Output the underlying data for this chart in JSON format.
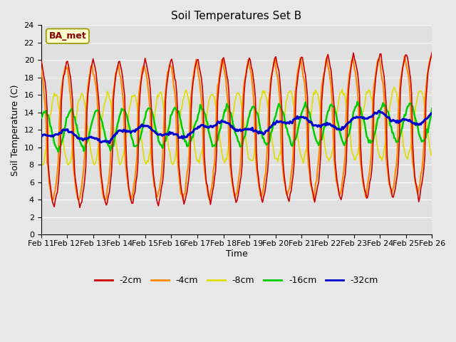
{
  "title": "Soil Temperatures Set B",
  "xlabel": "Time",
  "ylabel": "Soil Temperature (C)",
  "annotation": "BA_met",
  "ylim": [
    0,
    24
  ],
  "yticks": [
    0,
    2,
    4,
    6,
    8,
    10,
    12,
    14,
    16,
    18,
    20,
    22,
    24
  ],
  "x_labels": [
    "Feb 11",
    "Feb 12",
    "Feb 13",
    "Feb 14",
    "Feb 15",
    "Feb 16",
    "Feb 17",
    "Feb 18",
    "Feb 19",
    "Feb 20",
    "Feb 21",
    "Feb 22",
    "Feb 23",
    "Feb 24",
    "Feb 25",
    "Feb 26"
  ],
  "colors": {
    "-2cm": "#cc0000",
    "-4cm": "#ff8800",
    "-8cm": "#dddd00",
    "-16cm": "#00cc00",
    "-32cm": "#0000cc"
  },
  "line_widths": {
    "-2cm": 1.2,
    "-4cm": 1.5,
    "-8cm": 1.2,
    "-16cm": 1.8,
    "-32cm": 2.2
  },
  "fig_bg_color": "#e8e8e8",
  "plot_bg_color": "#e0e0e0",
  "title_fontsize": 11,
  "axis_label_fontsize": 9,
  "tick_fontsize": 8
}
